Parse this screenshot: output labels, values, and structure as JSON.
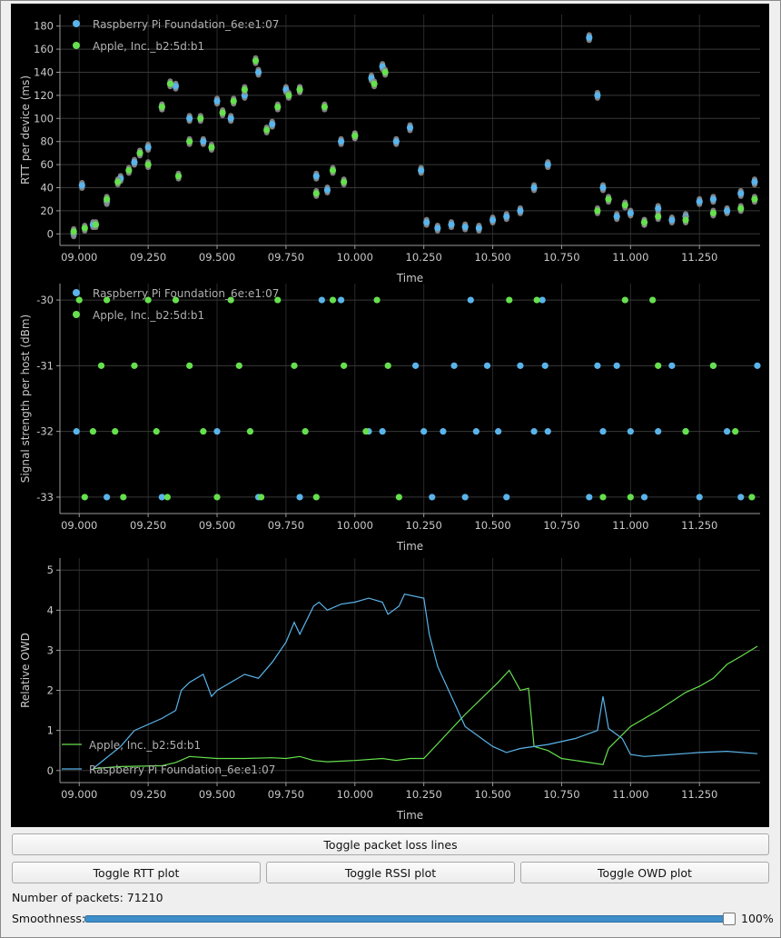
{
  "buttons": {
    "toggle_loss": "Toggle packet loss lines",
    "toggle_rtt": "Toggle RTT plot",
    "toggle_rssi": "Toggle RSSI plot",
    "toggle_owd": "Toggle OWD plot"
  },
  "status": {
    "packets_label": "Number of packets: 71210",
    "smoothness_label": "Smoothness:",
    "smoothness_value": "100%",
    "smoothness_level": 1.0
  },
  "colors": {
    "raspberry": "#5ab4ea",
    "apple": "#66e04e",
    "gray_overlay": "#8c8c8c",
    "grid": "#2a2a2a",
    "axis_text": "#c8c8c8"
  },
  "chart_data": [
    {
      "type": "scatter",
      "title": "",
      "xlabel": "Time",
      "ylabel": "RTT per device (ms)",
      "xlim": [
        8.93,
        11.47
      ],
      "ylim": [
        -10,
        190
      ],
      "x_ticks": [
        "09.000",
        "09.250",
        "09.500",
        "09.750",
        "10.000",
        "10.250",
        "10.500",
        "10.750",
        "11.000",
        "11.250"
      ],
      "y_ticks": [
        0,
        20,
        40,
        60,
        80,
        100,
        120,
        140,
        160,
        180
      ],
      "grid": true,
      "legend_position": "top-left",
      "series": [
        {
          "name": "Raspberry Pi Foundation_6e:e1:07",
          "color": "#5ab4ea",
          "x": [
            8.98,
            9.01,
            9.05,
            9.1,
            9.15,
            9.2,
            9.25,
            9.3,
            9.35,
            9.4,
            9.45,
            9.5,
            9.55,
            9.6,
            9.65,
            9.7,
            9.75,
            9.8,
            9.86,
            9.9,
            9.95,
            10.0,
            10.06,
            10.1,
            10.15,
            10.2,
            10.24,
            10.26,
            10.3,
            10.35,
            10.4,
            10.45,
            10.5,
            10.55,
            10.6,
            10.65,
            10.7,
            10.85,
            10.88,
            10.9,
            10.95,
            11.0,
            11.05,
            11.1,
            11.15,
            11.2,
            11.25,
            11.3,
            11.35,
            11.4,
            11.45
          ],
          "y": [
            0,
            42,
            8,
            28,
            48,
            62,
            75,
            110,
            128,
            100,
            80,
            115,
            100,
            120,
            140,
            95,
            125,
            125,
            50,
            38,
            80,
            85,
            135,
            145,
            80,
            92,
            55,
            10,
            5,
            8,
            6,
            5,
            12,
            15,
            20,
            40,
            60,
            170,
            120,
            40,
            15,
            18,
            10,
            22,
            12,
            15,
            28,
            30,
            20,
            35,
            45
          ]
        },
        {
          "name": "Apple, Inc._b2:5d:b1",
          "color": "#66e04e",
          "x": [
            8.98,
            9.02,
            9.06,
            9.1,
            9.14,
            9.18,
            9.22,
            9.25,
            9.3,
            9.33,
            9.36,
            9.4,
            9.44,
            9.48,
            9.52,
            9.56,
            9.6,
            9.64,
            9.68,
            9.72,
            9.76,
            9.8,
            9.86,
            9.89,
            9.92,
            9.96,
            10.0,
            10.07,
            10.11,
            10.88,
            10.92,
            10.98,
            11.05,
            11.1,
            11.2,
            11.3,
            11.4,
            11.45
          ],
          "y": [
            2,
            5,
            8,
            30,
            45,
            55,
            70,
            60,
            110,
            130,
            50,
            80,
            100,
            75,
            105,
            115,
            125,
            150,
            90,
            110,
            120,
            125,
            35,
            110,
            55,
            45,
            85,
            130,
            140,
            20,
            30,
            25,
            10,
            15,
            12,
            18,
            22,
            30
          ]
        }
      ]
    },
    {
      "type": "scatter",
      "title": "",
      "xlabel": "Time",
      "ylabel": "Signal strength per host (dBm)",
      "xlim": [
        8.93,
        11.47
      ],
      "ylim": [
        -33.25,
        -29.75
      ],
      "x_ticks": [
        "09.000",
        "09.250",
        "09.500",
        "09.750",
        "10.000",
        "10.250",
        "10.500",
        "10.750",
        "11.000",
        "11.250"
      ],
      "y_ticks": [
        -30,
        -31,
        -32,
        -33
      ],
      "grid": true,
      "legend_position": "top-left",
      "series": [
        {
          "name": "Raspberry Pi Foundation_6e:e1:07",
          "color": "#5ab4ea",
          "x": [
            8.99,
            9.1,
            9.3,
            9.5,
            9.65,
            9.8,
            9.88,
            9.95,
            10.05,
            10.1,
            10.22,
            10.25,
            10.28,
            10.32,
            10.36,
            10.4,
            10.44,
            10.48,
            10.52,
            10.55,
            10.6,
            10.65,
            10.69,
            10.85,
            10.9,
            10.95,
            11.0,
            11.05,
            11.1,
            11.15,
            11.2,
            11.25,
            11.3,
            11.35,
            11.4,
            11.46,
            10.42,
            10.68,
            10.7,
            10.88
          ],
          "x_note": "",
          "y": [
            -32,
            -33,
            -33,
            -32,
            -33,
            -33,
            -30,
            -30,
            -32,
            -32,
            -31,
            -32,
            -33,
            -32,
            -31,
            -33,
            -32,
            -31,
            -32,
            -33,
            -31,
            -32,
            -31,
            -33,
            -32,
            -31,
            -32,
            -33,
            -32,
            -31,
            -32,
            -33,
            -31,
            -32,
            -33,
            -31,
            -30,
            -30,
            -32,
            -31
          ]
        },
        {
          "name": "Apple, Inc._b2:5d:b1",
          "color": "#66e04e",
          "x": [
            9.0,
            9.02,
            9.05,
            9.08,
            9.1,
            9.13,
            9.16,
            9.2,
            9.25,
            9.28,
            9.32,
            9.35,
            9.4,
            9.45,
            9.5,
            9.55,
            9.58,
            9.62,
            9.66,
            9.72,
            9.78,
            9.82,
            9.86,
            9.92,
            9.96,
            10.04,
            10.08,
            10.12,
            10.16,
            10.56,
            10.66,
            10.98,
            11.08,
            10.9,
            11.0,
            11.1,
            11.2,
            11.3,
            11.38,
            11.44
          ],
          "y": [
            -30,
            -33,
            -32,
            -31,
            -30,
            -32,
            -33,
            -31,
            -30,
            -32,
            -33,
            -30,
            -31,
            -32,
            -33,
            -30,
            -31,
            -32,
            -33,
            -30,
            -31,
            -32,
            -33,
            -30,
            -31,
            -32,
            -30,
            -31,
            -33,
            -30,
            -30,
            -30,
            -30,
            -33,
            -33,
            -31,
            -32,
            -31,
            -32,
            -33
          ]
        }
      ]
    },
    {
      "type": "line",
      "title": "",
      "xlabel": "Time",
      "ylabel": "Relative OWD",
      "xlim": [
        8.93,
        11.47
      ],
      "ylim": [
        -0.3,
        5.3
      ],
      "x_ticks": [
        "09.000",
        "09.250",
        "09.500",
        "09.750",
        "10.000",
        "10.250",
        "10.500",
        "10.750",
        "11.000",
        "11.250"
      ],
      "y_ticks": [
        0,
        1,
        2,
        3,
        4,
        5
      ],
      "grid": true,
      "legend_position": "bottom-left",
      "series": [
        {
          "name": "Apple, Inc._b2:5d:b1",
          "color": "#66e04e",
          "x": [
            9.05,
            9.15,
            9.3,
            9.35,
            9.4,
            9.5,
            9.6,
            9.7,
            9.75,
            9.8,
            9.85,
            9.9,
            10.0,
            10.1,
            10.15,
            10.2,
            10.25,
            10.4,
            10.52,
            10.56,
            10.6,
            10.63,
            10.65,
            10.7,
            10.75,
            10.8,
            10.85,
            10.9,
            10.92,
            11.0,
            11.1,
            11.2,
            11.25,
            11.3,
            11.35,
            11.4,
            11.46
          ],
          "y": [
            0.05,
            0.1,
            0.12,
            0.2,
            0.35,
            0.3,
            0.3,
            0.32,
            0.3,
            0.35,
            0.25,
            0.22,
            0.25,
            0.3,
            0.25,
            0.3,
            0.3,
            1.4,
            2.2,
            2.5,
            2.0,
            2.05,
            0.6,
            0.5,
            0.3,
            0.25,
            0.2,
            0.15,
            0.55,
            1.1,
            1.5,
            1.95,
            2.1,
            2.3,
            2.65,
            2.85,
            3.1
          ]
        },
        {
          "name": "Raspberry Pi Foundation_6e:e1:07",
          "color": "#5ab4ea",
          "x": [
            9.05,
            9.15,
            9.2,
            9.3,
            9.35,
            9.37,
            9.4,
            9.45,
            9.48,
            9.5,
            9.6,
            9.65,
            9.7,
            9.75,
            9.78,
            9.8,
            9.85,
            9.87,
            9.9,
            9.95,
            10.0,
            10.05,
            10.1,
            10.12,
            10.16,
            10.18,
            10.25,
            10.27,
            10.3,
            10.4,
            10.5,
            10.55,
            10.6,
            10.7,
            10.8,
            10.88,
            10.9,
            10.92,
            10.97,
            11.0,
            11.05,
            11.15,
            11.25,
            11.35,
            11.46
          ],
          "y": [
            0.05,
            0.6,
            1.0,
            1.3,
            1.5,
            2.0,
            2.2,
            2.4,
            1.85,
            2.0,
            2.4,
            2.3,
            2.7,
            3.2,
            3.7,
            3.4,
            4.1,
            4.2,
            4.0,
            4.15,
            4.2,
            4.3,
            4.2,
            3.9,
            4.1,
            4.4,
            4.3,
            3.4,
            2.6,
            1.1,
            0.6,
            0.45,
            0.55,
            0.65,
            0.8,
            1.0,
            1.85,
            1.05,
            0.8,
            0.4,
            0.35,
            0.4,
            0.45,
            0.48,
            0.42
          ]
        }
      ]
    }
  ]
}
